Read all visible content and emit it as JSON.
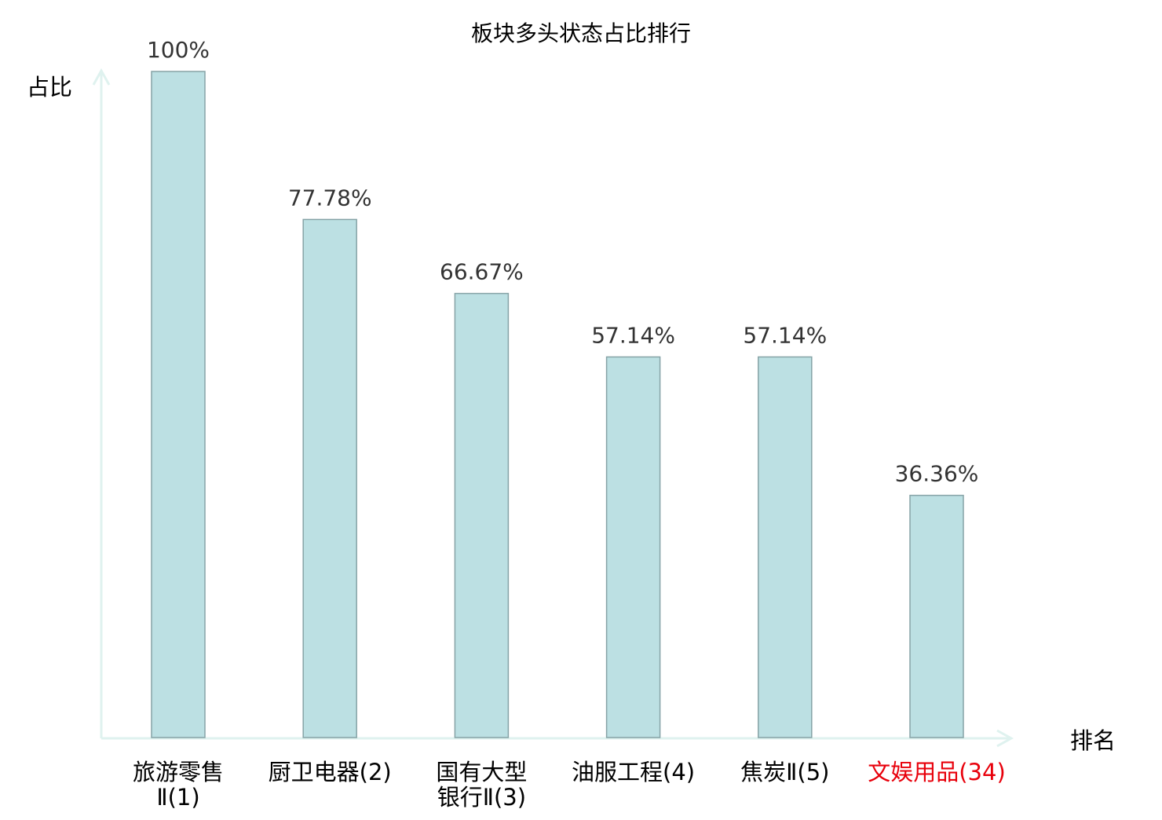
{
  "chart_data": {
    "type": "bar",
    "title": "板块多头状态占比排行",
    "xlabel": "排名",
    "ylabel": "占比",
    "ylim": [
      0,
      100
    ],
    "grid": false,
    "categories": [
      {
        "lines": [
          "旅游零售",
          "Ⅱ(1)"
        ],
        "highlight": false
      },
      {
        "lines": [
          "厨卫电器(2)"
        ],
        "highlight": false
      },
      {
        "lines": [
          "国有大型",
          "银行Ⅱ(3)"
        ],
        "highlight": false
      },
      {
        "lines": [
          "油服工程(4)"
        ],
        "highlight": false
      },
      {
        "lines": [
          "焦炭Ⅱ(5)"
        ],
        "highlight": false
      },
      {
        "lines": [
          "文娱用品(34)"
        ],
        "highlight": true
      }
    ],
    "values": [
      100,
      77.78,
      66.67,
      57.14,
      57.14,
      36.36
    ],
    "value_labels": [
      "100%",
      "77.78%",
      "66.67%",
      "57.14%",
      "57.14%",
      "36.36%"
    ],
    "colors": {
      "bar_fill": "#bce0e3",
      "bar_stroke": "#86a3a6",
      "axis": "#dff2ef",
      "highlight": "#e8000b",
      "text": "#000000",
      "value_text": "#333333"
    }
  }
}
